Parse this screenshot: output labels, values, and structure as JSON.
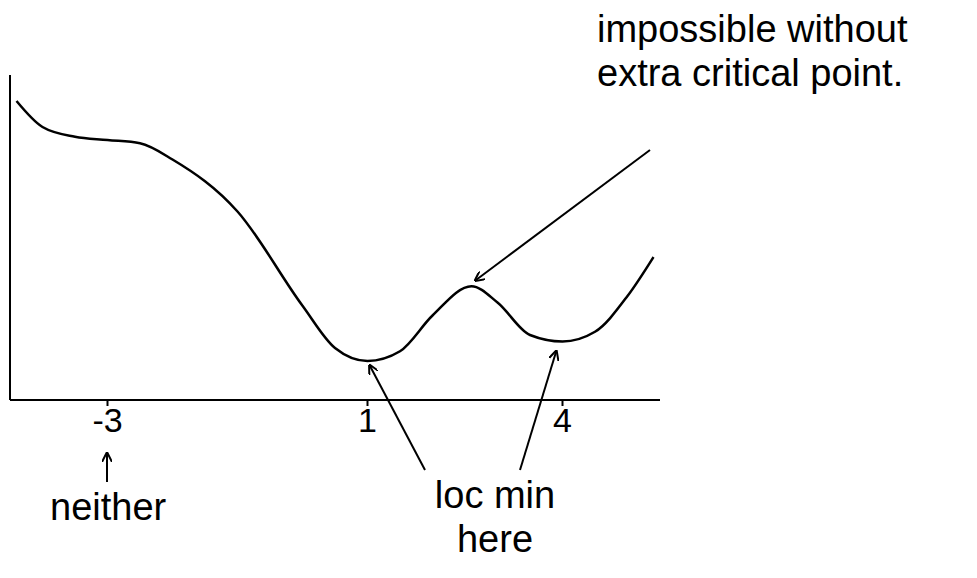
{
  "chart_data": {
    "type": "line",
    "x": [
      -4.4,
      -4,
      -3.5,
      -3,
      -2.5,
      -2,
      -1,
      0,
      0.5,
      1,
      1.5,
      2,
      2.6,
      3,
      3.5,
      4,
      4.5,
      5,
      5.4
    ],
    "values": [
      2.6,
      2.2,
      2.05,
      2.0,
      1.95,
      1.7,
      0.9,
      -0.55,
      -1.2,
      -1.4,
      -1.25,
      -0.7,
      -0.25,
      -0.5,
      -1.0,
      -1.1,
      -0.95,
      -0.4,
      0.2
    ],
    "color": "#000000",
    "xlim": [
      -4.5,
      5.5
    ],
    "xticks": [
      -3,
      1,
      4
    ],
    "ylim": [
      -2,
      3
    ],
    "tick_labels": "x",
    "annotations": [
      "impossible without extra critical point.",
      "neither",
      "loc min here"
    ]
  }
}
